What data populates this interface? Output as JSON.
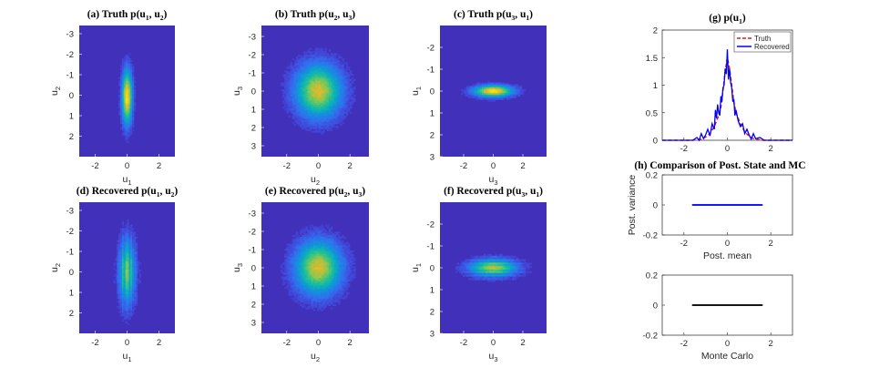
{
  "chart_data": [
    {
      "type": "heatmap",
      "id": "a",
      "title": "(a)  Truth p(u1, u2)",
      "title_parts": [
        "(a)  Truth p(u",
        "1",
        ", u",
        "2",
        ")"
      ],
      "xlabel": [
        "u",
        "1"
      ],
      "ylabel": [
        "u",
        "2"
      ],
      "xlim": [
        -3,
        3
      ],
      "ylim": [
        -3.4,
        3
      ],
      "yreverse": true,
      "xticks": [
        -2,
        0,
        2
      ],
      "yticks": [
        -3,
        -2,
        -1,
        0,
        1,
        2
      ],
      "blob": {
        "cx": 0,
        "cy": 0.1,
        "sx": 0.22,
        "sy": 0.9,
        "peak": 1.0
      }
    },
    {
      "type": "heatmap",
      "id": "b",
      "title": "(b)  Truth p(u2, u3)",
      "title_parts": [
        "(b)  Truth p(u",
        "2",
        ", u",
        "3",
        ")"
      ],
      "xlabel": [
        "u",
        "2"
      ],
      "ylabel": [
        "u",
        "3"
      ],
      "xlim": [
        -3.6,
        3.2
      ],
      "ylim": [
        -3.6,
        3.6
      ],
      "yreverse": true,
      "xticks": [
        -2,
        0,
        2
      ],
      "yticks": [
        -3,
        -2,
        -1,
        0,
        1,
        2,
        3
      ],
      "blob": {
        "cx": 0,
        "cy": 0,
        "sx": 1.0,
        "sy": 1.0,
        "peak": 0.85
      }
    },
    {
      "type": "heatmap",
      "id": "c",
      "title": "(c)  Truth p(u3, u1)",
      "title_parts": [
        "(c)  Truth p(u",
        "3",
        ", u",
        "1",
        ")"
      ],
      "xlabel": [
        "u",
        "3"
      ],
      "ylabel": [
        "u",
        "1"
      ],
      "xlim": [
        -3.6,
        3.6
      ],
      "ylim": [
        -3,
        3
      ],
      "yreverse": true,
      "xticks": [
        -2,
        0,
        2
      ],
      "yticks": [
        -2,
        -1,
        0,
        1,
        2,
        3
      ],
      "blob": {
        "cx": 0,
        "cy": 0,
        "sx": 0.9,
        "sy": 0.18,
        "peak": 1.0
      }
    },
    {
      "type": "heatmap",
      "id": "d",
      "title": "(d)  Recovered p(u1, u2)",
      "title_parts": [
        "(d)  Recovered p(u",
        "1",
        ", u",
        "2",
        ")"
      ],
      "xlabel": [
        "u",
        "1"
      ],
      "ylabel": [
        "u",
        "2"
      ],
      "xlim": [
        -3,
        3
      ],
      "ylim": [
        -3.4,
        3
      ],
      "yreverse": true,
      "xticks": [
        -2,
        0,
        2
      ],
      "yticks": [
        -3,
        -2,
        -1,
        0,
        1,
        2
      ],
      "blob": {
        "cx": 0,
        "cy": 0,
        "sx": 0.35,
        "sy": 1.1,
        "peak": 0.8,
        "stripes": "vertical"
      }
    },
    {
      "type": "heatmap",
      "id": "e",
      "title": "(e)  Recovered p(u2, u3)",
      "title_parts": [
        "(e)  Recovered p(u",
        "2",
        ", u",
        "3",
        ")"
      ],
      "xlabel": [
        "u",
        "2"
      ],
      "ylabel": [
        "u",
        "3"
      ],
      "xlim": [
        -3.6,
        3.2
      ],
      "ylim": [
        -3.6,
        3.6
      ],
      "yreverse": true,
      "xticks": [
        -2,
        0,
        2
      ],
      "yticks": [
        -3,
        -2,
        -1,
        0,
        1,
        2,
        3
      ],
      "blob": {
        "cx": 0,
        "cy": 0,
        "sx": 1.0,
        "sy": 1.0,
        "peak": 0.85
      }
    },
    {
      "type": "heatmap",
      "id": "f",
      "title": "(f)  Recovered p(u3, u1)",
      "title_parts": [
        "(f)  Recovered p(u",
        "3",
        ", u",
        "1",
        ")"
      ],
      "xlabel": [
        "u",
        "3"
      ],
      "ylabel": [
        "u",
        "1"
      ],
      "xlim": [
        -3.6,
        3.6
      ],
      "ylim": [
        -3,
        3
      ],
      "yreverse": true,
      "xticks": [
        -2,
        0,
        2
      ],
      "yticks": [
        -2,
        -1,
        0,
        1,
        2,
        3
      ],
      "blob": {
        "cx": 0,
        "cy": 0,
        "sx": 1.1,
        "sy": 0.28,
        "peak": 0.9,
        "stripes": "horizontal"
      }
    },
    {
      "type": "line",
      "id": "g",
      "title": "(g)  p(u1)",
      "title_parts": [
        "(g)  p(u",
        "1",
        ")"
      ],
      "xlim": [
        -3,
        3
      ],
      "ylim": [
        0,
        2
      ],
      "xticks": [
        -2,
        0,
        2
      ],
      "yticks": [
        0,
        0.5,
        1,
        1.5,
        2
      ],
      "ytick_labels": [
        "0",
        "0.5",
        "1",
        "1.5",
        "2"
      ],
      "legend_position": "top-right",
      "series": [
        {
          "name": "Truth",
          "color": "#e41a1c",
          "dash": true,
          "x": [
            -3,
            -1.6,
            -1.2,
            -1.0,
            -0.8,
            -0.6,
            -0.4,
            -0.3,
            -0.2,
            -0.1,
            0,
            0.1,
            0.2,
            0.3,
            0.4,
            0.6,
            0.8,
            1.0,
            1.2,
            1.6,
            3
          ],
          "y": [
            0,
            0,
            0.02,
            0.06,
            0.12,
            0.25,
            0.45,
            0.6,
            0.9,
            1.25,
            1.5,
            1.3,
            1.0,
            0.7,
            0.5,
            0.3,
            0.15,
            0.08,
            0.03,
            0,
            0
          ]
        },
        {
          "name": "Recovered",
          "color": "#0000ff",
          "dash": false,
          "x": [
            -3,
            -1.6,
            -1.4,
            -1.3,
            -1.2,
            -1.1,
            -1.0,
            -0.9,
            -0.8,
            -0.7,
            -0.6,
            -0.55,
            -0.5,
            -0.45,
            -0.4,
            -0.35,
            -0.3,
            -0.25,
            -0.2,
            -0.15,
            -0.1,
            -0.05,
            0,
            0.05,
            0.1,
            0.15,
            0.2,
            0.25,
            0.3,
            0.35,
            0.4,
            0.5,
            0.6,
            0.7,
            0.8,
            0.9,
            1.0,
            1.1,
            1.2,
            1.3,
            1.5,
            1.7,
            3
          ],
          "y": [
            0,
            0,
            0.05,
            0.0,
            0.12,
            0.03,
            0.1,
            0.2,
            0.08,
            0.3,
            0.2,
            0.55,
            0.4,
            0.65,
            0.5,
            0.45,
            0.8,
            0.7,
            0.95,
            1.0,
            1.3,
            1.2,
            1.65,
            1.1,
            1.3,
            1.05,
            0.95,
            0.7,
            0.75,
            0.45,
            0.55,
            0.35,
            0.25,
            0.3,
            0.12,
            0.2,
            0.1,
            0.02,
            0.12,
            0.03,
            0.05,
            0,
            0
          ]
        }
      ]
    },
    {
      "type": "scatter",
      "id": "h1",
      "title": "(h)  Comparison of Post. State and MC",
      "xlabel": "Post. mean",
      "ylabel": "Post. variance",
      "xlim": [
        -3,
        3
      ],
      "ylim": [
        -0.2,
        0.2
      ],
      "xticks": [
        -2,
        0,
        2
      ],
      "yticks": [
        -0.2,
        0,
        0.2
      ],
      "ytick_labels": [
        "-0.2",
        "0",
        "0.2"
      ],
      "color": "#0000ff",
      "points": {
        "y": 0,
        "x_range": [
          -1.6,
          1.6
        ]
      }
    },
    {
      "type": "scatter",
      "id": "h2",
      "xlabel": "Monte Carlo",
      "xlim": [
        -3,
        3
      ],
      "ylim": [
        -0.2,
        0.2
      ],
      "xticks": [
        -2,
        0,
        2
      ],
      "yticks": [
        -0.2,
        0,
        0.2
      ],
      "ytick_labels": [
        "-0.2",
        "0",
        "0.2"
      ],
      "color": "#000000",
      "points": {
        "y": 0,
        "x_range": [
          -1.6,
          1.6
        ]
      }
    }
  ]
}
